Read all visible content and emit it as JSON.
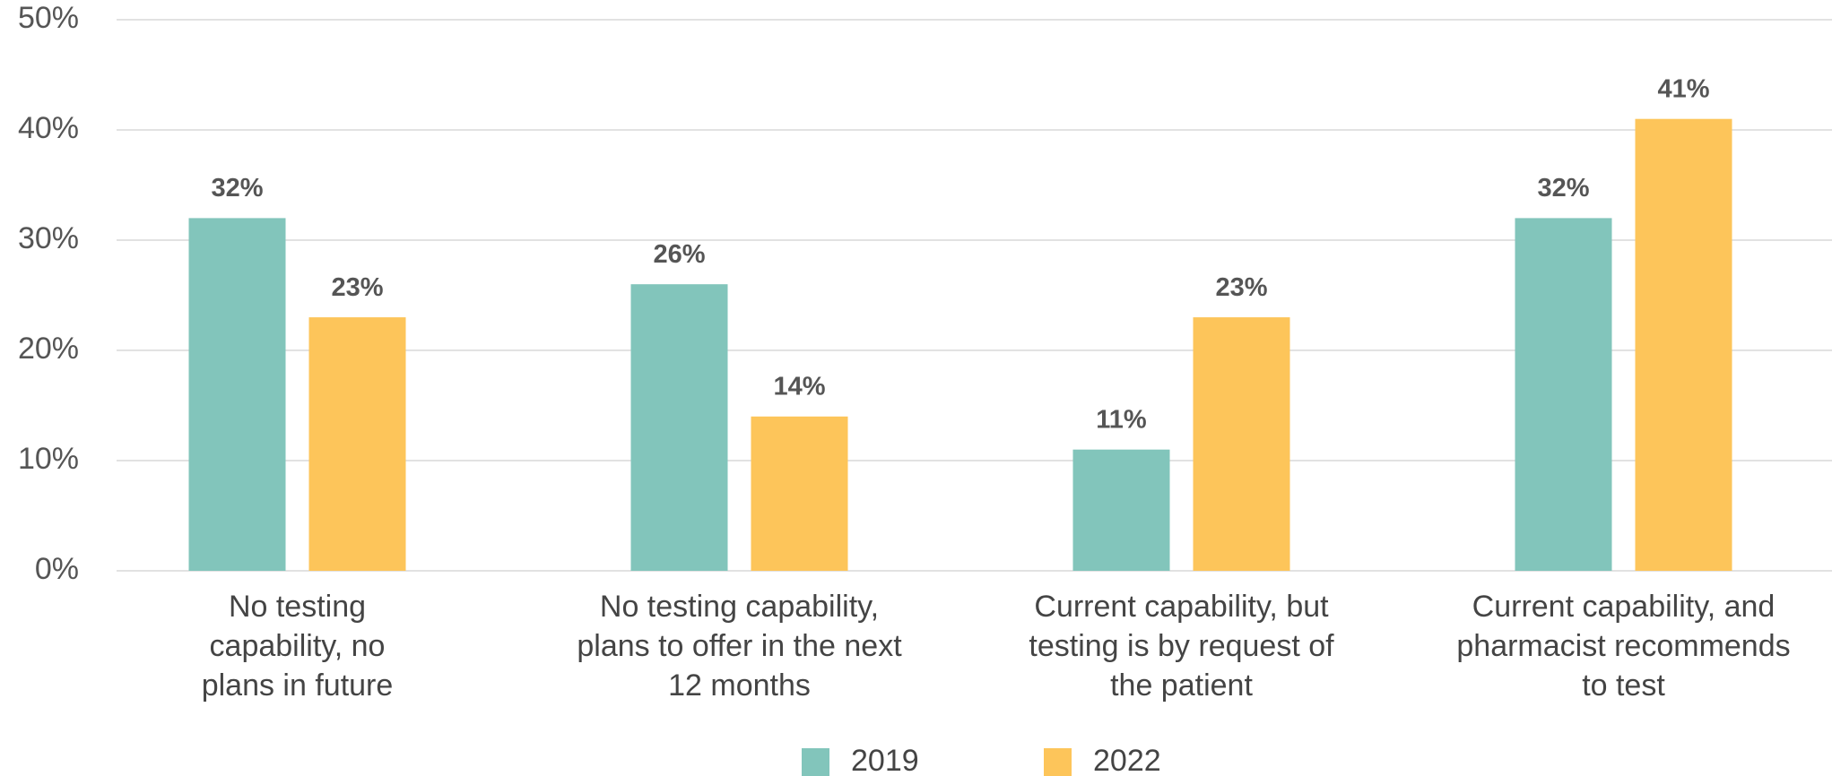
{
  "chart_data": {
    "type": "bar",
    "categories": [
      "No testing capability, no plans in future",
      "No testing capability, plans to offer in the next 12 months",
      "Current capability, but testing is by request of the patient",
      "Current capability, and pharmacist recommends to test"
    ],
    "series": [
      {
        "name": "2019",
        "color": "#82c5bb",
        "values": [
          32,
          26,
          11,
          32
        ],
        "value_labels": [
          "32%",
          "26%",
          "11%",
          "32%"
        ]
      },
      {
        "name": "2022",
        "color": "#fdc55a",
        "values": [
          23,
          14,
          23,
          41
        ],
        "value_labels": [
          "23%",
          "14%",
          "23%",
          "41%"
        ]
      }
    ],
    "ylim": [
      0,
      50
    ],
    "yticks": [
      {
        "value": 0,
        "label": "0%"
      },
      {
        "value": 10,
        "label": "10%"
      },
      {
        "value": 20,
        "label": "20%"
      },
      {
        "value": 30,
        "label": "30%"
      },
      {
        "value": 40,
        "label": "40%"
      },
      {
        "value": 50,
        "label": "50%"
      }
    ],
    "grid": true
  }
}
